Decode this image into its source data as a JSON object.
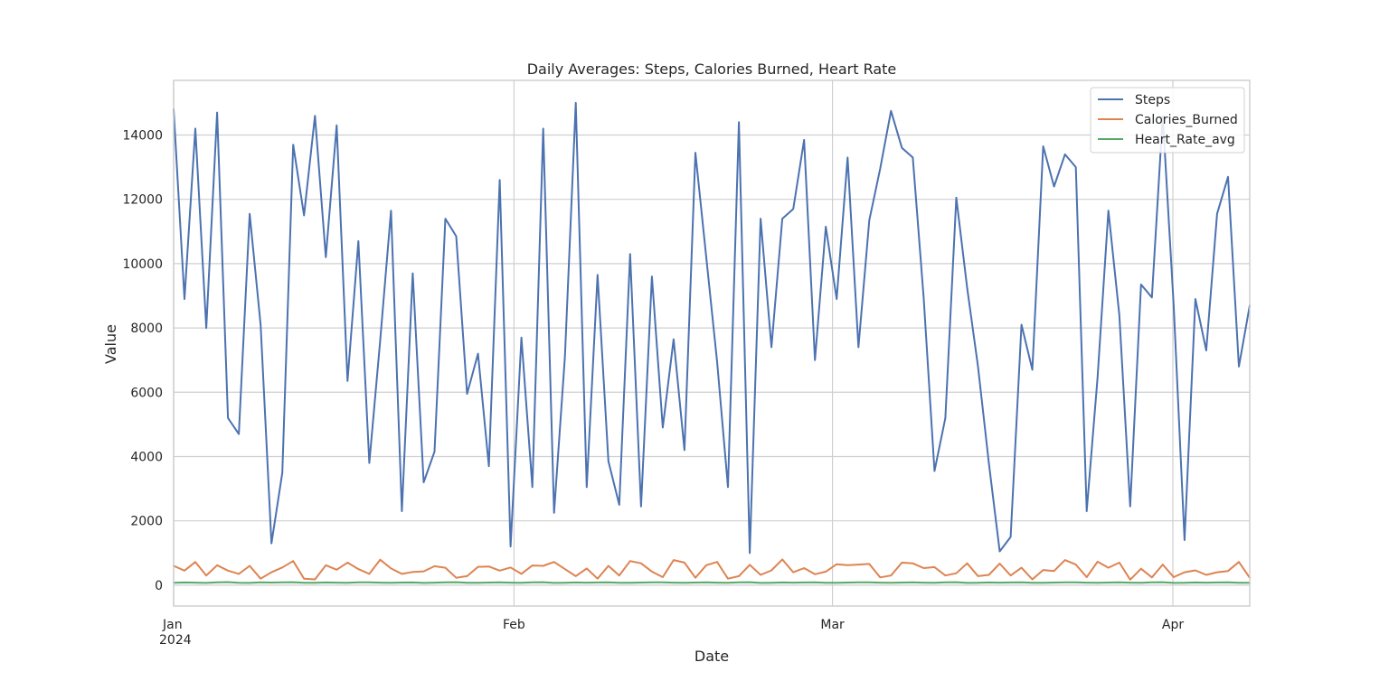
{
  "chart_data": {
    "type": "line",
    "title": "Daily Averages: Steps, Calories Burned, Heart Rate",
    "xlabel": "Date",
    "ylabel": "Value",
    "x_start": "2024-01-01",
    "x_end": "2024-04-08",
    "xlim": [
      "2024-01-01",
      "2024-04-08"
    ],
    "ylim": [
      -650,
      15700
    ],
    "grid": true,
    "legend_position": "top-right",
    "x_ticks": [
      {
        "date": "2024-01-01",
        "label": "Jan",
        "sublabel": "2024"
      },
      {
        "date": "2024-02-01",
        "label": "Feb",
        "sublabel": ""
      },
      {
        "date": "2024-03-01",
        "label": "Mar",
        "sublabel": ""
      },
      {
        "date": "2024-04-01",
        "label": "Apr",
        "sublabel": ""
      }
    ],
    "y_ticks": [
      {
        "value": 0,
        "label": "0"
      },
      {
        "value": 2000,
        "label": "2000"
      },
      {
        "value": 4000,
        "label": "4000"
      },
      {
        "value": 6000,
        "label": "6000"
      },
      {
        "value": 8000,
        "label": "8000"
      },
      {
        "value": 10000,
        "label": "10000"
      },
      {
        "value": 12000,
        "label": "12000"
      },
      {
        "value": 14000,
        "label": "14000"
      }
    ],
    "series": [
      {
        "name": "Steps",
        "color": "#4c72b0",
        "values": [
          14800,
          8900,
          14200,
          8000,
          14700,
          5200,
          4700,
          11550,
          8100,
          1300,
          3500,
          13700,
          11500,
          14600,
          10200,
          14300,
          6350,
          10700,
          3800,
          7600,
          11650,
          2300,
          9700,
          3200,
          4150,
          11400,
          10850,
          5950,
          7200,
          3700,
          12600,
          1200,
          7700,
          3050,
          14200,
          2250,
          7100,
          15000,
          3050,
          9650,
          3850,
          2500,
          10300,
          2450,
          9600,
          4900,
          7650,
          4200,
          13450,
          10200,
          6950,
          3050,
          14400,
          1000,
          11400,
          7400,
          11400,
          11700,
          13850,
          7000,
          11150,
          8900,
          13300,
          7400,
          11350,
          12950,
          14750,
          13600,
          13300,
          8950,
          3550,
          5200,
          12050,
          9250,
          6800,
          3800,
          1050,
          1500,
          8100,
          6700,
          13650,
          12400,
          13400,
          13000,
          2300,
          6450,
          11650,
          8400,
          2450,
          9350,
          8950,
          14600,
          8700,
          1400,
          8900,
          7300,
          11550,
          12700,
          6800,
          8700
        ]
      },
      {
        "name": "Calories_Burned",
        "color": "#dd8452",
        "values": [
          600,
          450,
          720,
          300,
          620,
          450,
          350,
          600,
          200,
          400,
          550,
          750,
          200,
          180,
          620,
          480,
          700,
          500,
          350,
          790,
          520,
          350,
          410,
          430,
          590,
          540,
          230,
          280,
          570,
          580,
          450,
          550,
          350,
          610,
          600,
          720,
          500,
          280,
          520,
          200,
          600,
          300,
          750,
          680,
          420,
          250,
          780,
          700,
          230,
          620,
          720,
          200,
          280,
          630,
          320,
          460,
          800,
          400,
          530,
          340,
          420,
          650,
          620,
          640,
          660,
          240,
          300,
          700,
          680,
          530,
          560,
          300,
          370,
          680,
          280,
          320,
          670,
          300,
          540,
          180,
          470,
          440,
          780,
          640,
          250,
          730,
          540,
          700,
          170,
          510,
          240,
          640,
          250,
          400,
          460,
          320,
          400,
          440,
          720,
          230
        ]
      },
      {
        "name": "Heart_Rate_avg",
        "color": "#55a868",
        "values": [
          75,
          82,
          78,
          70,
          90,
          95,
          72,
          68,
          85,
          80,
          88,
          92,
          76,
          74,
          83,
          79,
          71,
          86,
          90,
          77,
          73,
          81,
          84,
          69,
          78,
          87,
          91,
          75,
          72,
          80,
          85,
          78,
          74,
          89,
          93,
          70,
          76,
          82,
          79,
          84,
          88,
          72,
          75,
          81,
          86,
          90,
          77,
          73,
          80,
          85,
          78,
          74,
          89,
          93,
          70,
          76,
          82,
          79,
          84,
          88,
          72,
          75,
          81,
          86,
          90,
          77,
          73,
          80,
          85,
          78,
          74,
          89,
          93,
          70,
          76,
          82,
          79,
          84,
          88,
          72,
          75,
          81,
          86,
          90,
          77,
          73,
          80,
          85,
          78,
          74,
          89,
          93,
          70,
          76,
          82,
          79,
          84,
          88,
          72,
          75
        ]
      }
    ]
  }
}
